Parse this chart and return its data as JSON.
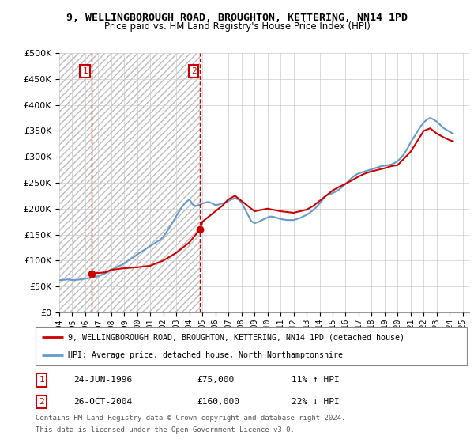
{
  "title": "9, WELLINGBOROUGH ROAD, BROUGHTON, KETTERING, NN14 1PD",
  "subtitle": "Price paid vs. HM Land Registry's House Price Index (HPI)",
  "legend_line1": "9, WELLINGBOROUGH ROAD, BROUGHTON, KETTERING, NN14 1PD (detached house)",
  "legend_line2": "HPI: Average price, detached house, North Northamptonshire",
  "footnote1": "Contains HM Land Registry data © Crown copyright and database right 2024.",
  "footnote2": "This data is licensed under the Open Government Licence v3.0.",
  "annotation1_label": "1",
  "annotation1_date": "24-JUN-1996",
  "annotation1_price": "£75,000",
  "annotation1_hpi": "11% ↑ HPI",
  "annotation2_label": "2",
  "annotation2_date": "26-OCT-2004",
  "annotation2_price": "£160,000",
  "annotation2_hpi": "22% ↓ HPI",
  "sale1_x": 1996.48,
  "sale1_y": 75000,
  "sale2_x": 2004.82,
  "sale2_y": 160000,
  "price_line_color": "#cc0000",
  "hpi_line_color": "#6699cc",
  "vline_color": "#cc0000",
  "annotation_box_color": "#cc0000",
  "ylim": [
    0,
    500000
  ],
  "yticks": [
    0,
    50000,
    100000,
    150000,
    200000,
    250000,
    300000,
    350000,
    400000,
    450000,
    500000
  ],
  "xlim_min": 1994,
  "xlim_max": 2025.5,
  "xticks": [
    1994,
    1995,
    1996,
    1997,
    1998,
    1999,
    2000,
    2001,
    2002,
    2003,
    2004,
    2005,
    2006,
    2007,
    2008,
    2009,
    2010,
    2011,
    2012,
    2013,
    2014,
    2015,
    2016,
    2017,
    2018,
    2019,
    2020,
    2021,
    2022,
    2023,
    2024,
    2025
  ],
  "hpi_data_x": [
    1994.0,
    1994.25,
    1994.5,
    1994.75,
    1995.0,
    1995.25,
    1995.5,
    1995.75,
    1996.0,
    1996.25,
    1996.5,
    1996.75,
    1997.0,
    1997.25,
    1997.5,
    1997.75,
    1998.0,
    1998.25,
    1998.5,
    1998.75,
    1999.0,
    1999.25,
    1999.5,
    1999.75,
    2000.0,
    2000.25,
    2000.5,
    2000.75,
    2001.0,
    2001.25,
    2001.5,
    2001.75,
    2002.0,
    2002.25,
    2002.5,
    2002.75,
    2003.0,
    2003.25,
    2003.5,
    2003.75,
    2004.0,
    2004.25,
    2004.5,
    2004.75,
    2005.0,
    2005.25,
    2005.5,
    2005.75,
    2006.0,
    2006.25,
    2006.5,
    2006.75,
    2007.0,
    2007.25,
    2007.5,
    2007.75,
    2008.0,
    2008.25,
    2008.5,
    2008.75,
    2009.0,
    2009.25,
    2009.5,
    2009.75,
    2010.0,
    2010.25,
    2010.5,
    2010.75,
    2011.0,
    2011.25,
    2011.5,
    2011.75,
    2012.0,
    2012.25,
    2012.5,
    2012.75,
    2013.0,
    2013.25,
    2013.5,
    2013.75,
    2014.0,
    2014.25,
    2014.5,
    2014.75,
    2015.0,
    2015.25,
    2015.5,
    2015.75,
    2016.0,
    2016.25,
    2016.5,
    2016.75,
    2017.0,
    2017.25,
    2017.5,
    2017.75,
    2018.0,
    2018.25,
    2018.5,
    2018.75,
    2019.0,
    2019.25,
    2019.5,
    2019.75,
    2020.0,
    2020.25,
    2020.5,
    2020.75,
    2021.0,
    2021.25,
    2021.5,
    2021.75,
    2022.0,
    2022.25,
    2022.5,
    2022.75,
    2023.0,
    2023.25,
    2023.5,
    2023.75,
    2024.0,
    2024.25
  ],
  "hpi_data_y": [
    62000,
    62500,
    63000,
    63500,
    62000,
    62500,
    63000,
    64000,
    65000,
    66000,
    67000,
    68000,
    70000,
    72000,
    75000,
    78000,
    82000,
    85000,
    88000,
    91000,
    95000,
    99000,
    103000,
    107000,
    112000,
    116000,
    120000,
    124000,
    128000,
    132000,
    136000,
    140000,
    146000,
    155000,
    165000,
    175000,
    186000,
    196000,
    206000,
    213000,
    218000,
    208000,
    205000,
    207000,
    210000,
    212000,
    213000,
    210000,
    207000,
    208000,
    210000,
    212000,
    215000,
    218000,
    220000,
    218000,
    212000,
    200000,
    188000,
    176000,
    172000,
    174000,
    177000,
    180000,
    183000,
    185000,
    184000,
    182000,
    180000,
    179000,
    178000,
    178000,
    178000,
    180000,
    182000,
    185000,
    188000,
    192000,
    197000,
    203000,
    210000,
    218000,
    225000,
    228000,
    230000,
    233000,
    237000,
    242000,
    248000,
    254000,
    260000,
    265000,
    268000,
    270000,
    272000,
    274000,
    276000,
    278000,
    280000,
    282000,
    283000,
    284000,
    285000,
    288000,
    292000,
    298000,
    306000,
    316000,
    328000,
    338000,
    348000,
    358000,
    366000,
    372000,
    375000,
    372000,
    368000,
    362000,
    356000,
    352000,
    348000,
    345000
  ],
  "price_data_x": [
    1996.48,
    1996.6,
    1997.0,
    1997.5,
    1998.0,
    1999.0,
    1999.5,
    2000.0,
    2001.0,
    2002.0,
    2003.0,
    2004.0,
    2004.82,
    2005.0,
    2005.5,
    2006.0,
    2006.5,
    2007.0,
    2007.5,
    2008.0,
    2009.0,
    2010.0,
    2011.0,
    2012.0,
    2013.0,
    2013.5,
    2014.0,
    2014.5,
    2015.0,
    2015.5,
    2016.0,
    2016.5,
    2017.0,
    2017.5,
    2018.0,
    2018.5,
    2019.0,
    2019.5,
    2020.0,
    2021.0,
    2021.5,
    2022.0,
    2022.5,
    2023.0,
    2023.5,
    2024.0,
    2024.25
  ],
  "price_data_y": [
    75000,
    75500,
    76000,
    77000,
    82000,
    85000,
    86000,
    87000,
    90000,
    100000,
    115000,
    135000,
    160000,
    175000,
    185000,
    195000,
    205000,
    218000,
    225000,
    215000,
    195000,
    200000,
    195000,
    192000,
    198000,
    205000,
    215000,
    225000,
    235000,
    242000,
    248000,
    255000,
    262000,
    268000,
    272000,
    275000,
    278000,
    282000,
    284000,
    310000,
    330000,
    350000,
    355000,
    345000,
    338000,
    332000,
    330000
  ],
  "grid_color": "#cccccc"
}
